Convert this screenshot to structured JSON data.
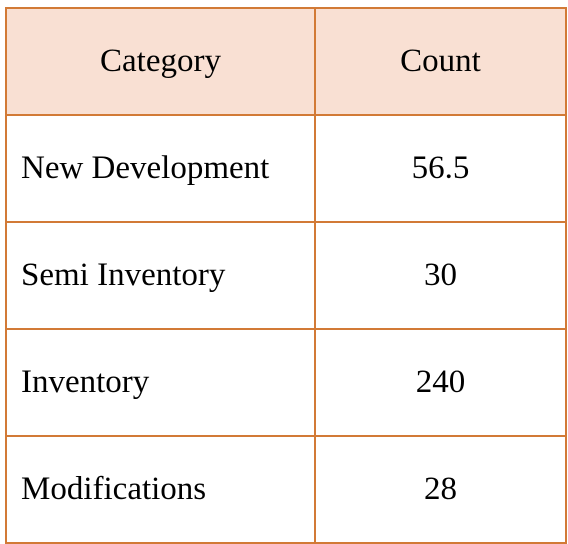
{
  "table": {
    "header_bg": "#f9e0d3",
    "border_color": "#d27a36",
    "columns": [
      "Category",
      "Count"
    ],
    "rows": [
      {
        "category": "New Development",
        "count": "56.5"
      },
      {
        "category": "Semi Inventory",
        "count": "30"
      },
      {
        "category": "Inventory",
        "count": "240"
      },
      {
        "category": "Modifications",
        "count": "28"
      }
    ]
  }
}
